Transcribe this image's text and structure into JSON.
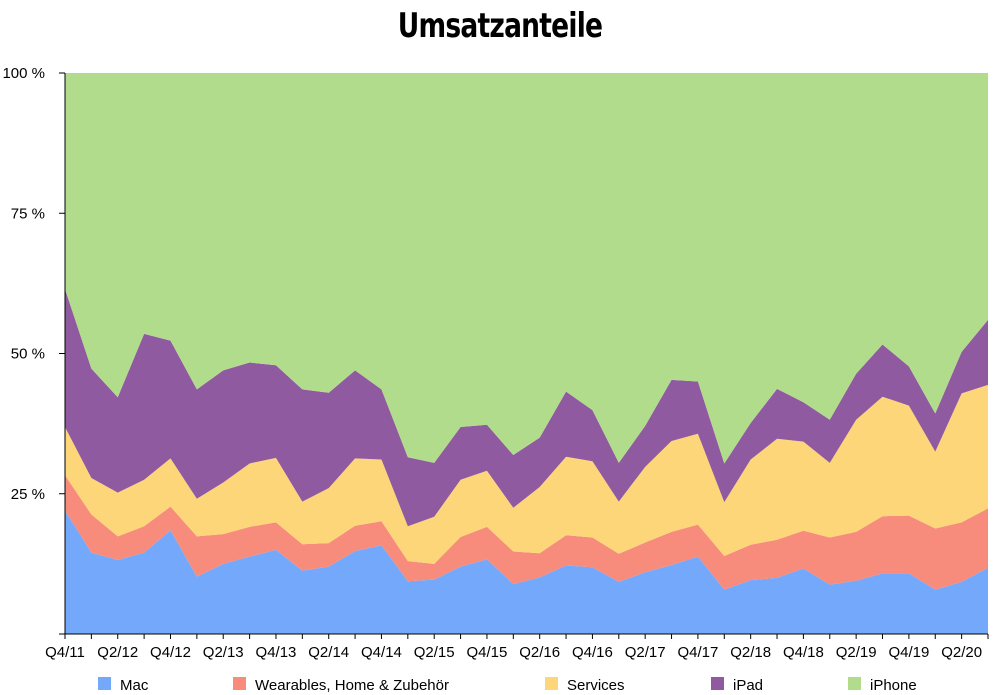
{
  "chart_data": {
    "type": "area",
    "stacked": true,
    "normalized": true,
    "title": "Umsatzanteile",
    "xlabel": "",
    "ylabel": "",
    "ylim": [
      0,
      100
    ],
    "yticks": [
      "100 %",
      "75 %",
      "50 %",
      "25 %"
    ],
    "xtick_labels": [
      "Q4/11",
      "Q2/12",
      "Q4/12",
      "Q2/13",
      "Q4/13",
      "Q2/14",
      "Q4/14",
      "Q2/15",
      "Q4/15",
      "Q2/16",
      "Q4/16",
      "Q2/17",
      "Q4/17",
      "Q2/18",
      "Q4/18",
      "Q2/19",
      "Q4/19",
      "Q2/20"
    ],
    "x": [
      "Q4/11",
      "Q1/12",
      "Q2/12",
      "Q3/12",
      "Q4/12",
      "Q1/13",
      "Q2/13",
      "Q3/13",
      "Q4/13",
      "Q1/14",
      "Q2/14",
      "Q3/14",
      "Q4/14",
      "Q1/15",
      "Q2/15",
      "Q3/15",
      "Q4/15",
      "Q1/16",
      "Q2/16",
      "Q3/16",
      "Q4/16",
      "Q1/17",
      "Q2/17",
      "Q3/17",
      "Q4/17",
      "Q1/18",
      "Q2/18",
      "Q3/18",
      "Q4/18",
      "Q1/19",
      "Q2/19",
      "Q3/19",
      "Q4/19",
      "Q1/20",
      "Q2/20",
      "Q3/20"
    ],
    "legend_position": "bottom",
    "series": [
      {
        "name": "Mac",
        "color": "#73a8fa",
        "values": [
          22.0,
          14.5,
          13.2,
          14.5,
          18.5,
          10.2,
          12.5,
          13.8,
          15.0,
          11.3,
          12.0,
          14.8,
          15.8,
          9.4,
          9.7,
          12.0,
          13.3,
          8.9,
          10.1,
          12.2,
          11.9,
          9.3,
          11.0,
          12.3,
          13.8,
          7.9,
          9.6,
          10.0,
          11.7,
          8.8,
          9.5,
          10.8,
          10.8,
          7.9,
          9.3,
          11.8
        ]
      },
      {
        "name": "Wearables, Home & Zubehör",
        "color": "#f78b7c",
        "values": [
          6.3,
          6.8,
          4.2,
          4.7,
          4.2,
          7.2,
          5.3,
          5.3,
          4.9,
          4.7,
          4.2,
          4.5,
          4.3,
          3.6,
          2.8,
          5.3,
          5.8,
          5.8,
          4.3,
          5.4,
          5.3,
          5.0,
          5.3,
          5.9,
          5.7,
          6.0,
          6.3,
          6.8,
          6.7,
          8.4,
          8.7,
          10.2,
          10.3,
          10.9,
          10.6,
          10.6
        ]
      },
      {
        "name": "Services",
        "color": "#fcd678",
        "values": [
          8.6,
          6.5,
          7.8,
          8.3,
          8.6,
          6.7,
          9.2,
          11.3,
          11.5,
          7.6,
          9.8,
          12.0,
          11.0,
          6.2,
          8.4,
          10.2,
          10.0,
          7.8,
          11.8,
          14.0,
          13.6,
          9.3,
          13.5,
          16.2,
          16.2,
          9.6,
          15.2,
          18.0,
          15.9,
          13.3,
          20.0,
          21.3,
          19.6,
          13.7,
          23.0,
          22.0
        ]
      },
      {
        "name": "iPad",
        "color": "#8f5aa0",
        "values": [
          24.6,
          19.5,
          17.0,
          26.0,
          21.0,
          19.5,
          20.0,
          18.0,
          16.5,
          20.0,
          17.0,
          15.7,
          12.5,
          12.3,
          9.6,
          9.4,
          8.2,
          9.4,
          8.8,
          11.6,
          9.1,
          6.9,
          7.3,
          10.9,
          9.3,
          6.9,
          6.5,
          8.9,
          7.0,
          7.7,
          8.2,
          9.3,
          7.0,
          6.8,
          7.4,
          11.6
        ]
      },
      {
        "name": "iPhone",
        "color": "#b1dc8c",
        "values": [
          38.5,
          52.7,
          57.8,
          46.5,
          47.7,
          56.4,
          53.0,
          51.6,
          52.1,
          56.4,
          57.0,
          53.0,
          56.4,
          68.5,
          69.5,
          63.1,
          62.7,
          68.1,
          65.0,
          56.8,
          60.1,
          69.5,
          62.9,
          54.7,
          55.0,
          69.6,
          62.4,
          56.3,
          58.7,
          61.8,
          53.6,
          48.4,
          52.3,
          60.7,
          49.7,
          44.0
        ]
      }
    ]
  }
}
